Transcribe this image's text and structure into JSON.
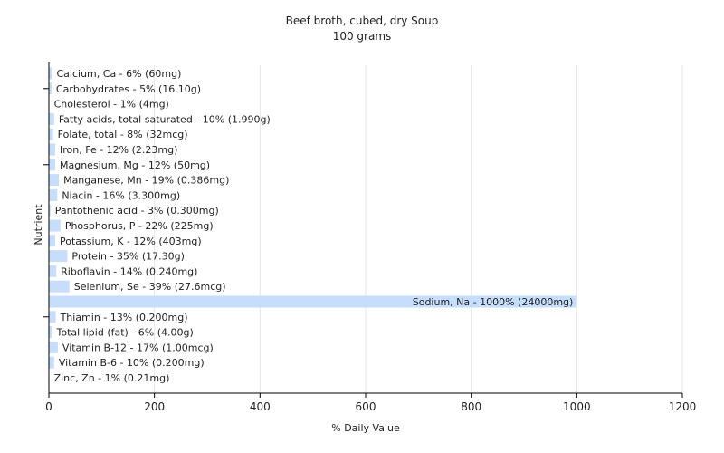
{
  "chart_data": {
    "type": "bar",
    "orientation": "horizontal",
    "title": "Beef broth, cubed, dry Soup",
    "subtitle": "100 grams",
    "xlabel": "% Daily Value",
    "ylabel": "Nutrient",
    "xlim": [
      0,
      1200
    ],
    "xticks": [
      0,
      200,
      400,
      600,
      800,
      1000,
      1200
    ],
    "grid": "vertical",
    "bar_color": "#c6defb",
    "categories": [
      "Calcium, Ca",
      "Carbohydrates",
      "Cholesterol",
      "Fatty acids, total saturated",
      "Folate, total",
      "Iron, Fe",
      "Magnesium, Mg",
      "Manganese, Mn",
      "Niacin",
      "Pantothenic acid",
      "Phosphorus, P",
      "Potassium, K",
      "Protein",
      "Riboflavin",
      "Selenium, Se",
      "Sodium, Na",
      "Thiamin",
      "Total lipid (fat)",
      "Vitamin B-12",
      "Vitamin B-6",
      "Zinc, Zn"
    ],
    "values": [
      6,
      5,
      1,
      10,
      8,
      12,
      12,
      19,
      16,
      3,
      22,
      12,
      35,
      14,
      39,
      1000,
      13,
      6,
      17,
      10,
      1
    ],
    "labels": [
      "Calcium, Ca - 6% (60mg)",
      "Carbohydrates - 5% (16.10g)",
      "Cholesterol - 1% (4mg)",
      "Fatty acids, total saturated - 10% (1.990g)",
      "Folate, total - 8% (32mcg)",
      "Iron, Fe - 12% (2.23mg)",
      "Magnesium, Mg - 12% (50mg)",
      "Manganese, Mn - 19% (0.386mg)",
      "Niacin - 16% (3.300mg)",
      "Pantothenic acid - 3% (0.300mg)",
      "Phosphorus, P - 22% (225mg)",
      "Potassium, K - 12% (403mg)",
      "Protein - 35% (17.30g)",
      "Riboflavin - 14% (0.240mg)",
      "Selenium, Se - 39% (27.6mcg)",
      "Sodium, Na - 1000% (24000mg)",
      "Thiamin - 13% (0.200mg)",
      "Total lipid (fat) - 6% (4.00g)",
      "Vitamin B-12 - 17% (1.00mcg)",
      "Vitamin B-6 - 10% (0.200mg)",
      "Zinc, Zn - 1% (0.21mg)"
    ]
  }
}
